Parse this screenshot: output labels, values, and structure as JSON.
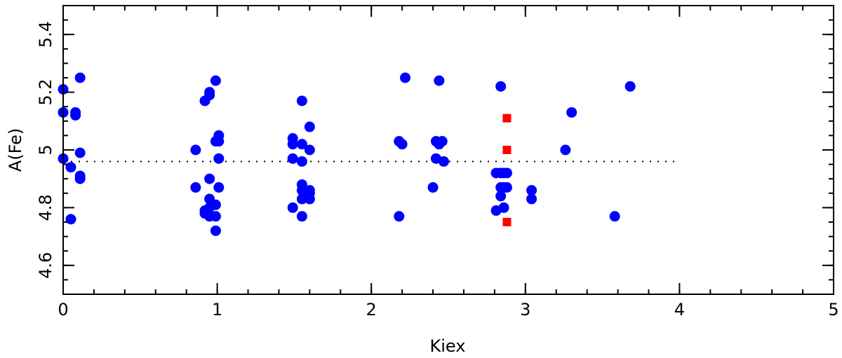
{
  "chart_data": {
    "type": "scatter",
    "xlabel": "Kiex",
    "ylabel": "A(Fe)",
    "xlim": [
      0,
      5
    ],
    "ylim": [
      4.5,
      5.5
    ],
    "x_ticks": [
      0,
      1,
      2,
      3,
      4,
      5
    ],
    "x_tick_labels": [
      "0",
      "1",
      "2",
      "3",
      "4",
      "5"
    ],
    "x_minor_step": 0.2,
    "y_ticks": [
      4.6,
      4.8,
      5.0,
      5.2,
      5.4
    ],
    "y_tick_labels": [
      "4.6",
      "4.8",
      "5",
      "5.2",
      "5.4"
    ],
    "y_minor_step": 0.05,
    "grid": false,
    "reference_line": {
      "y": 4.96,
      "x_range": [
        0,
        4
      ],
      "style": "dotted",
      "color": "#000000"
    },
    "series": [
      {
        "marker": "circle",
        "color": "#0000ff",
        "points": [
          [
            0.0,
            5.21
          ],
          [
            0.0,
            5.13
          ],
          [
            0.0,
            4.97
          ],
          [
            0.05,
            4.94
          ],
          [
            0.05,
            4.76
          ],
          [
            0.08,
            5.13
          ],
          [
            0.08,
            5.12
          ],
          [
            0.11,
            5.25
          ],
          [
            0.11,
            4.99
          ],
          [
            0.11,
            4.91
          ],
          [
            0.11,
            4.9
          ],
          [
            0.86,
            5.0
          ],
          [
            0.86,
            4.87
          ],
          [
            0.92,
            5.17
          ],
          [
            0.92,
            4.79
          ],
          [
            0.92,
            4.78
          ],
          [
            0.95,
            5.2
          ],
          [
            0.95,
            5.19
          ],
          [
            0.95,
            4.9
          ],
          [
            0.95,
            4.83
          ],
          [
            0.95,
            4.8
          ],
          [
            0.95,
            4.77
          ],
          [
            0.99,
            5.24
          ],
          [
            0.99,
            5.03
          ],
          [
            0.99,
            4.81
          ],
          [
            0.99,
            4.77
          ],
          [
            0.99,
            4.72
          ],
          [
            1.01,
            5.05
          ],
          [
            1.01,
            5.03
          ],
          [
            1.01,
            4.97
          ],
          [
            1.01,
            4.87
          ],
          [
            1.49,
            5.04
          ],
          [
            1.49,
            5.02
          ],
          [
            1.49,
            4.97
          ],
          [
            1.49,
            4.8
          ],
          [
            1.55,
            5.17
          ],
          [
            1.55,
            5.02
          ],
          [
            1.55,
            4.96
          ],
          [
            1.55,
            4.88
          ],
          [
            1.55,
            4.86
          ],
          [
            1.55,
            4.83
          ],
          [
            1.55,
            4.77
          ],
          [
            1.6,
            5.08
          ],
          [
            1.6,
            5.0
          ],
          [
            1.6,
            4.86
          ],
          [
            1.6,
            4.85
          ],
          [
            1.6,
            4.83
          ],
          [
            2.18,
            5.03
          ],
          [
            2.18,
            4.77
          ],
          [
            2.2,
            5.02
          ],
          [
            2.22,
            5.25
          ],
          [
            2.4,
            4.87
          ],
          [
            2.42,
            5.03
          ],
          [
            2.42,
            4.97
          ],
          [
            2.44,
            5.24
          ],
          [
            2.44,
            5.02
          ],
          [
            2.46,
            5.03
          ],
          [
            2.47,
            4.96
          ],
          [
            2.81,
            4.92
          ],
          [
            2.81,
            4.79
          ],
          [
            2.84,
            5.22
          ],
          [
            2.84,
            4.92
          ],
          [
            2.84,
            4.87
          ],
          [
            2.84,
            4.84
          ],
          [
            2.86,
            4.92
          ],
          [
            2.86,
            4.87
          ],
          [
            2.86,
            4.8
          ],
          [
            2.88,
            4.92
          ],
          [
            2.88,
            4.87
          ],
          [
            3.04,
            4.86
          ],
          [
            3.04,
            4.83
          ],
          [
            3.26,
            5.0
          ],
          [
            3.3,
            5.13
          ],
          [
            3.58,
            4.77
          ],
          [
            3.68,
            5.22
          ]
        ]
      },
      {
        "marker": "square",
        "color": "#ff0000",
        "points": [
          [
            2.88,
            5.11
          ],
          [
            2.88,
            5.0
          ],
          [
            2.88,
            4.75
          ]
        ]
      }
    ]
  }
}
